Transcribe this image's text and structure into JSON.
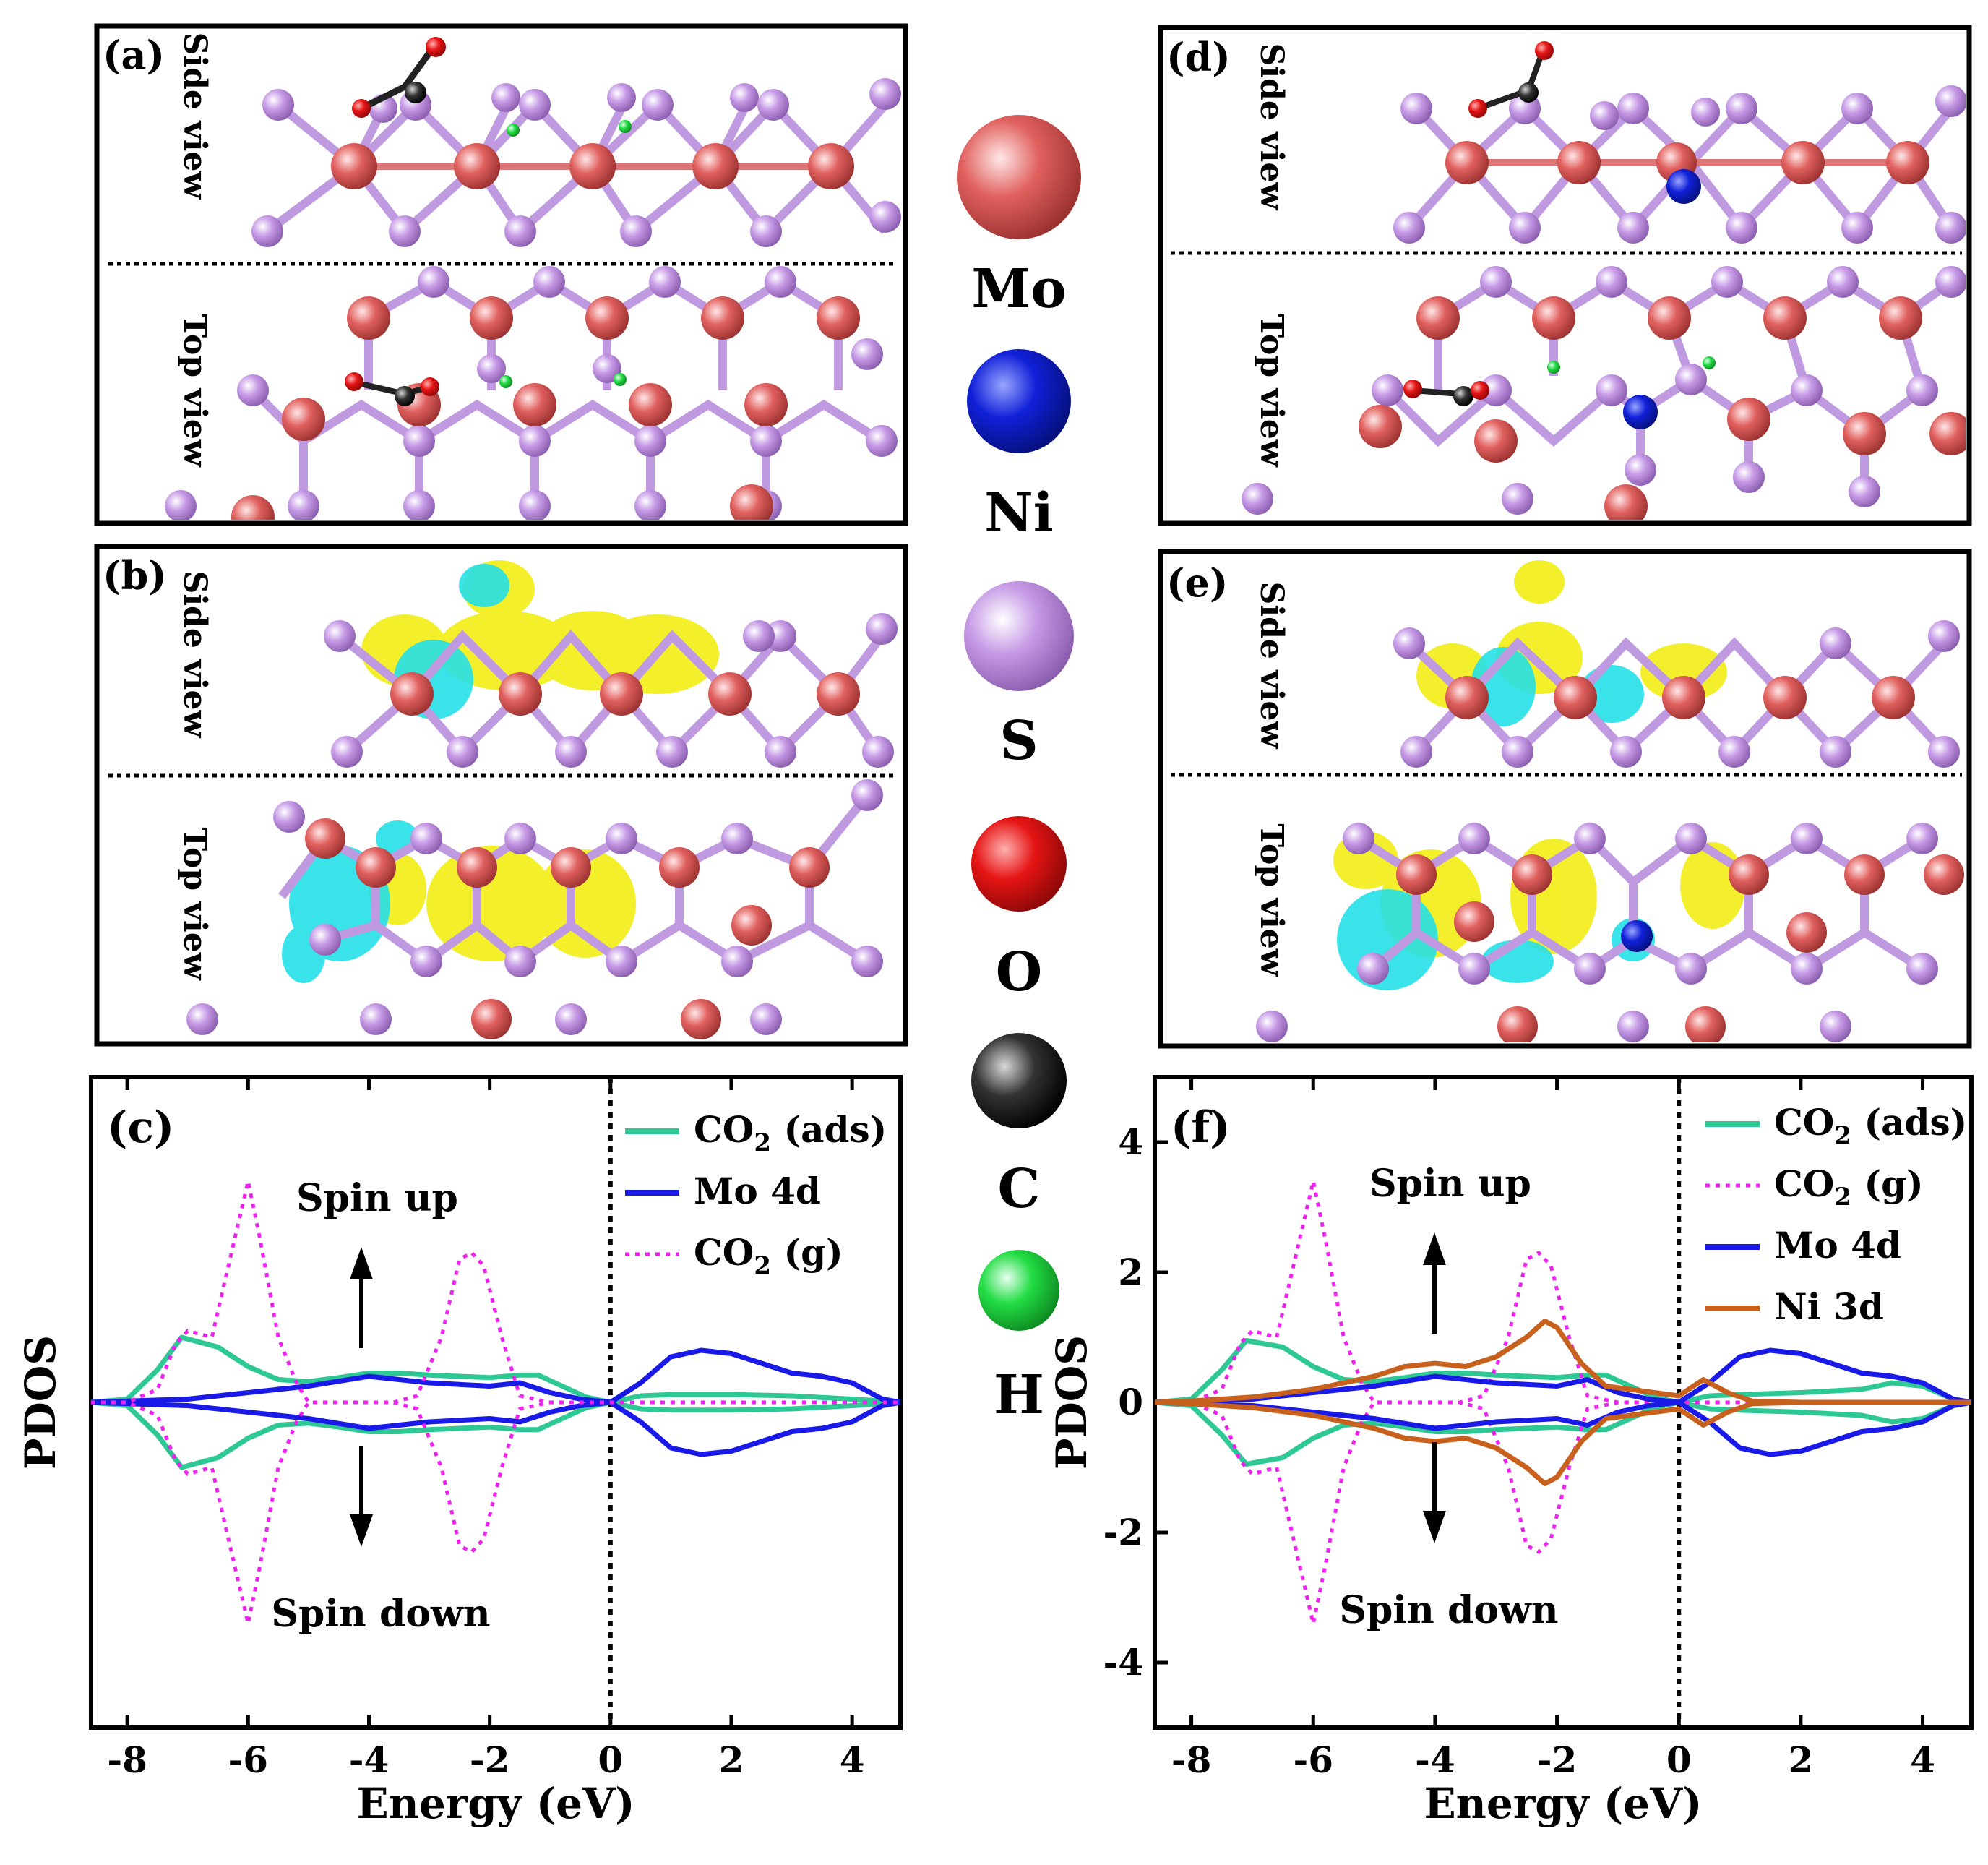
{
  "figure": {
    "panels": {
      "a": {
        "label": "(a)",
        "side_label": "Side view",
        "top_label": "Top view"
      },
      "b": {
        "label": "(b)",
        "side_label": "Side view",
        "top_label": "Top view"
      },
      "d": {
        "label": "(d)",
        "side_label": "Side view",
        "top_label": "Top view"
      },
      "e": {
        "label": "(e)",
        "side_label": "Side view",
        "top_label": "Top view"
      }
    },
    "legend": [
      {
        "element": "Mo",
        "color": "#e0605e"
      },
      {
        "element": "Ni",
        "color": "#1020d8"
      },
      {
        "element": "S",
        "color": "#c69ae6"
      },
      {
        "element": "O",
        "color": "#e61414"
      },
      {
        "element": "C",
        "color": "#1a1a1a"
      },
      {
        "element": "H",
        "color": "#22dd44"
      }
    ],
    "charge_colors": {
      "accumulation": "#f2ee1a",
      "depletion": "#25e0e8"
    }
  },
  "chart_data": [
    {
      "type": "line",
      "panel": "(c)",
      "xlabel": "Energy (eV)",
      "ylabel": "PDOS",
      "xlim": [
        -8.6,
        4.8
      ],
      "ylim": [
        -5,
        5
      ],
      "xticks": [
        "-8",
        "-6",
        "-4",
        "-2",
        "0",
        "2",
        "4"
      ],
      "yticks": [],
      "fermi_level": 0,
      "annotations": {
        "up": "Spin up",
        "down": "Spin down"
      },
      "legend": [
        "CO2 (ads)",
        "Mo 4d",
        "CO2 (g)"
      ],
      "series": [
        {
          "name": "CO2 (ads)",
          "color": "#2ec894",
          "style": "solid",
          "x": [
            -8.6,
            -8,
            -7.5,
            -7.1,
            -6.5,
            -6,
            -5.5,
            -5,
            -4.5,
            -4,
            -3.5,
            -3,
            -2.5,
            -2,
            -1.5,
            -1.2,
            -0.8,
            -0.4,
            0,
            0.5,
            1,
            2,
            3,
            4,
            4.5,
            4.8
          ],
          "up": [
            0,
            0.05,
            0.5,
            1.0,
            0.85,
            0.55,
            0.35,
            0.32,
            0.38,
            0.45,
            0.45,
            0.42,
            0.4,
            0.38,
            0.42,
            0.42,
            0.25,
            0.08,
            0,
            0.1,
            0.12,
            0.12,
            0.1,
            0.05,
            0.02,
            0
          ]
        },
        {
          "name": "Mo 4d",
          "color": "#1a1ae8",
          "style": "solid",
          "x": [
            -8.6,
            -8,
            -7,
            -6,
            -5,
            -4,
            -3,
            -2,
            -1.5,
            -1,
            -0.5,
            0,
            0.5,
            1,
            1.5,
            2,
            2.5,
            3,
            3.5,
            4,
            4.5,
            4.8
          ],
          "up": [
            0,
            0.02,
            0.05,
            0.15,
            0.25,
            0.4,
            0.3,
            0.25,
            0.3,
            0.15,
            0.05,
            0,
            0.3,
            0.7,
            0.8,
            0.75,
            0.6,
            0.45,
            0.4,
            0.3,
            0.05,
            0
          ]
        },
        {
          "name": "CO2 (g)",
          "color": "#ee22ee",
          "style": "dotted",
          "x": [
            -8.6,
            -8,
            -7.5,
            -7.2,
            -7,
            -6.6,
            -6.3,
            -6,
            -5.8,
            -5.5,
            -5.2,
            -5,
            -3.6,
            -3.2,
            -2.8,
            -2.5,
            -2.3,
            -2.1,
            -1.8,
            -1.5,
            -1,
            0,
            4.8
          ],
          "up": [
            0,
            0,
            0.2,
            0.9,
            1.1,
            1.0,
            2.2,
            3.4,
            2.5,
            1.0,
            0.3,
            0,
            0,
            0.1,
            1.0,
            2.2,
            2.3,
            2.1,
            1.0,
            0.1,
            0,
            0,
            0
          ]
        }
      ]
    },
    {
      "type": "line",
      "panel": "(f)",
      "xlabel": "Energy (eV)",
      "ylabel": "PDOS",
      "xlim": [
        -8.6,
        4.8
      ],
      "ylim": [
        -5,
        5
      ],
      "xticks": [
        "-8",
        "-6",
        "-4",
        "-2",
        "0",
        "2",
        "4"
      ],
      "yticks": [
        "-4",
        "-2",
        "0",
        "2",
        "4"
      ],
      "fermi_level": 0,
      "annotations": {
        "up": "Spin up",
        "down": "Spin down"
      },
      "legend": [
        "CO2 (ads)",
        "CO2 (g)",
        "Mo 4d",
        "Ni 3d"
      ],
      "series": [
        {
          "name": "CO2 (ads)",
          "color": "#2ec894",
          "style": "solid",
          "x": [
            -8.6,
            -8,
            -7.5,
            -7.1,
            -6.5,
            -6,
            -5.5,
            -5,
            -4.5,
            -4,
            -3.5,
            -3,
            -2.5,
            -2,
            -1.5,
            -1.2,
            -0.8,
            -0.4,
            0,
            0.5,
            1,
            2,
            3,
            3.5,
            4,
            4.5,
            4.8
          ],
          "up": [
            0,
            0.05,
            0.5,
            0.95,
            0.85,
            0.55,
            0.35,
            0.32,
            0.38,
            0.45,
            0.45,
            0.42,
            0.4,
            0.38,
            0.42,
            0.42,
            0.25,
            0.08,
            0,
            0.1,
            0.12,
            0.15,
            0.2,
            0.3,
            0.25,
            0.05,
            0
          ]
        },
        {
          "name": "CO2 (g)",
          "color": "#ee22ee",
          "style": "dotted",
          "x": [
            -8.6,
            -8,
            -7.5,
            -7.2,
            -7,
            -6.6,
            -6.3,
            -6,
            -5.8,
            -5.5,
            -5.2,
            -5,
            -3.6,
            -3.2,
            -2.8,
            -2.5,
            -2.3,
            -2.1,
            -1.8,
            -1.5,
            -1,
            0,
            4.8
          ],
          "up": [
            0,
            0,
            0.2,
            0.9,
            1.1,
            1.0,
            2.2,
            3.4,
            2.5,
            1.0,
            0.3,
            0,
            0,
            0.1,
            1.0,
            2.2,
            2.3,
            2.1,
            1.0,
            0.1,
            0,
            0,
            0
          ]
        },
        {
          "name": "Mo 4d",
          "color": "#1a1ae8",
          "style": "solid",
          "x": [
            -8.6,
            -8,
            -7,
            -6,
            -5,
            -4,
            -3,
            -2,
            -1.5,
            -1,
            -0.5,
            0,
            0.5,
            1,
            1.5,
            2,
            2.5,
            3,
            3.5,
            4,
            4.5,
            4.8
          ],
          "up": [
            0,
            0.02,
            0.05,
            0.15,
            0.25,
            0.4,
            0.3,
            0.25,
            0.35,
            0.15,
            0.05,
            0,
            0.3,
            0.7,
            0.8,
            0.75,
            0.6,
            0.45,
            0.4,
            0.3,
            0.05,
            0
          ]
        },
        {
          "name": "Ni 3d",
          "color": "#c8601e",
          "style": "solid",
          "x": [
            -8.6,
            -8,
            -7,
            -6,
            -5,
            -4.5,
            -4,
            -3.5,
            -3,
            -2.5,
            -2.2,
            -2,
            -1.6,
            -1.2,
            -0.8,
            -0.4,
            0,
            0.4,
            0.8,
            1.2,
            2,
            3,
            4,
            4.8
          ],
          "up": [
            0,
            0.02,
            0.08,
            0.2,
            0.4,
            0.55,
            0.6,
            0.55,
            0.7,
            1.0,
            1.25,
            1.15,
            0.6,
            0.25,
            0.2,
            0.15,
            0.1,
            0.35,
            0.15,
            0.02,
            0,
            0,
            0,
            0
          ]
        }
      ]
    }
  ]
}
